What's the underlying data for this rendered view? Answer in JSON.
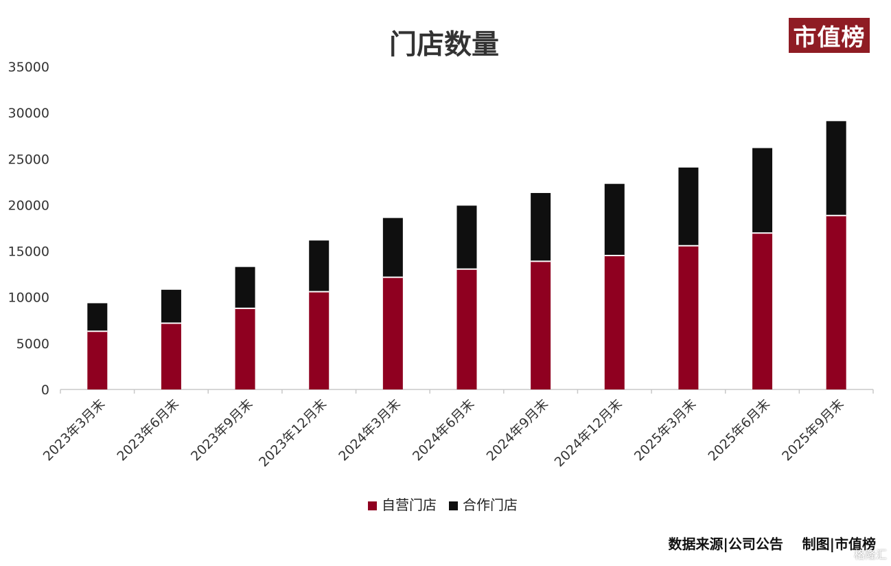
{
  "logo": {
    "text": "市值榜"
  },
  "footer": {
    "text": "数据来源|公司公告    制图|市值榜"
  },
  "watermark": {
    "text": "格隆汇"
  },
  "colors": {
    "self_operated": "#8f0020",
    "partner": "#0f0f0f",
    "logo_bg": "#8f1c24",
    "axis": "#c8c8c8"
  },
  "chart_data": {
    "type": "bar",
    "stacked": true,
    "title": "门店数量",
    "xlabel": "",
    "ylabel": "",
    "ylim": [
      0,
      35000
    ],
    "yticks": [
      0,
      5000,
      10000,
      15000,
      20000,
      25000,
      30000,
      35000
    ],
    "grid": false,
    "legend_position": "bottom",
    "categories": [
      "2023年3月末",
      "2023年6月末",
      "2023年9月末",
      "2023年12月末",
      "2024年3月末",
      "2024年6月末",
      "2024年9月末",
      "2024年12月末",
      "2025年3月末",
      "2025年6月末",
      "2025年9月末"
    ],
    "series": [
      {
        "name": "自营门店",
        "color": "#8f0020",
        "values": [
          6310,
          7190,
          8800,
          10600,
          12170,
          13050,
          13900,
          14520,
          15580,
          16960,
          18860
        ]
      },
      {
        "name": "合作门店",
        "color": "#0f0f0f",
        "values": [
          3040,
          3620,
          4480,
          5550,
          6420,
          6880,
          7400,
          7770,
          8480,
          9210,
          10230
        ]
      }
    ]
  }
}
